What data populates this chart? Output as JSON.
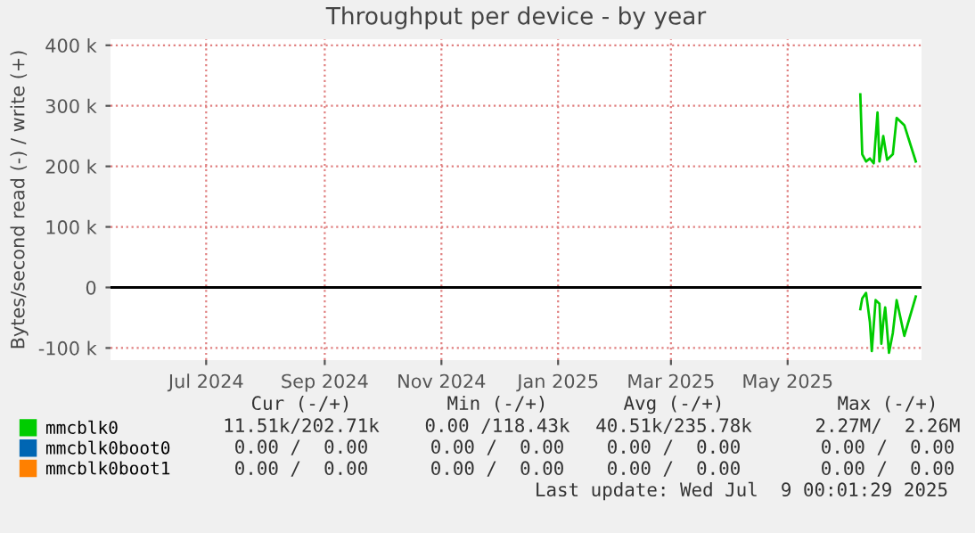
{
  "chart_data": {
    "type": "line",
    "title": "Throughput per device - by year",
    "ylabel": "Bytes/second read (-) / write (+)",
    "xlim": [
      "2024-05-12",
      "2025-07-10"
    ],
    "xticks": [
      {
        "value": "2024-07-01",
        "label": "Jul 2024"
      },
      {
        "value": "2024-09-01",
        "label": "Sep 2024"
      },
      {
        "value": "2024-11-01",
        "label": "Nov 2024"
      },
      {
        "value": "2025-01-01",
        "label": "Jan 2025"
      },
      {
        "value": "2025-03-01",
        "label": "Mar 2025"
      },
      {
        "value": "2025-05-01",
        "label": "May 2025"
      }
    ],
    "ylim": [
      -120000,
      410000
    ],
    "yticks": [
      {
        "value": -100000,
        "label": "-100 k"
      },
      {
        "value": 0,
        "label": "0"
      },
      {
        "value": 100000,
        "label": "100 k"
      },
      {
        "value": 200000,
        "label": "200 k"
      },
      {
        "value": 300000,
        "label": "300 k"
      },
      {
        "value": 400000,
        "label": "400 k"
      }
    ],
    "grid": true,
    "legend": "bottom left",
    "ref_lines": [
      {
        "axis": "y",
        "value": 0,
        "color": "#000000"
      }
    ],
    "series": [
      {
        "name": "mmcblk0",
        "color": "#00cc00",
        "x": [
          "2025-06-08",
          "2025-06-09",
          "2025-06-11",
          "2025-06-13",
          "2025-06-15",
          "2025-06-17",
          "2025-06-18",
          "2025-06-20",
          "2025-06-22",
          "2025-06-25",
          "2025-06-27",
          "2025-07-01",
          "2025-07-07"
        ],
        "values": [
          319000,
          220000,
          208000,
          213000,
          205000,
          289000,
          208000,
          250000,
          211000,
          220000,
          280000,
          268000,
          208000
        ]
      },
      {
        "color": "#00cc00",
        "x": [
          "2025-06-08",
          "2025-06-09",
          "2025-06-11",
          "2025-06-12",
          "2025-06-13",
          "2025-06-14",
          "2025-06-16",
          "2025-06-18",
          "2025-06-19",
          "2025-06-20",
          "2025-06-21",
          "2025-06-23",
          "2025-06-25",
          "2025-06-27",
          "2025-07-01",
          "2025-07-07"
        ],
        "values": [
          -36000,
          -18000,
          -9000,
          -33000,
          -57000,
          -105000,
          -21000,
          -27000,
          -93000,
          -57000,
          -33000,
          -108000,
          -75000,
          -21000,
          -80000,
          -15000
        ]
      },
      {
        "name": "mmcblk0boot0",
        "color": "#0066b3"
      },
      {
        "name": "mmcblk0boot1",
        "color": "#ff8000"
      }
    ],
    "annotations": [
      "Cur (-/+)",
      "Min (-/+)",
      "Avg (-/+)",
      "Max (-/+)",
      "11.51k/202.71k",
      "0.00 /118.43k",
      "40.51k/235.78k",
      "2.27M/  2.26M",
      "0.00 /  0.00",
      "0.00 /  0.00",
      "0.00 /  0.00",
      "0.00 /  0.00",
      "0.00 /  0.00",
      "0.00 /  0.00",
      "0.00 /  0.00",
      "0.00 /  0.00",
      "Last update: Wed Jul  9 00:01:29 2025"
    ]
  }
}
